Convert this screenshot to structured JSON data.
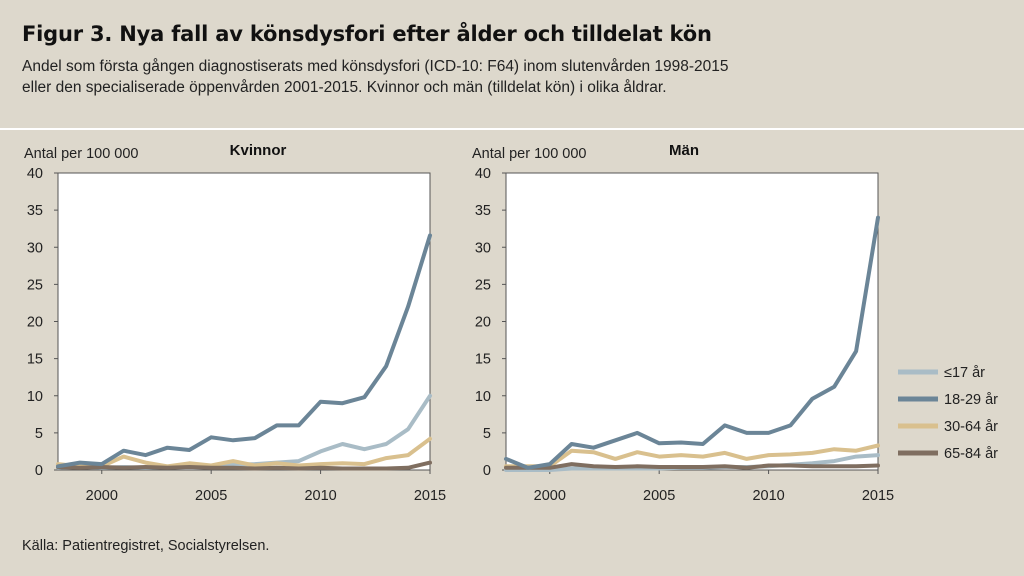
{
  "title": "Figur 3. Nya fall av könsdysfori efter ålder och tilldelat kön",
  "subtitle_line1": "Andel som första gången diagnostiserats med könsdysfori (ICD-10: F64) inom slutenvården 1998-2015",
  "subtitle_line2": "eller den specialiserade öppenvården 2001-2015. Kvinnor och män (tilldelat kön) i olika åldrar.",
  "source": "Källa: Patientregistret, Socialstyrelsen.",
  "colors": {
    "le17": "#a9bcc6",
    "age18_29": "#6b8597",
    "age30_64": "#d9c08e",
    "age65_84": "#7f6e60"
  },
  "legend": [
    {
      "label": "≤17 år",
      "color_key": "le17"
    },
    {
      "label": "18-29 år",
      "color_key": "age18_29"
    },
    {
      "label": "30-64 år",
      "color_key": "age30_64"
    },
    {
      "label": "65-84 år",
      "color_key": "age65_84"
    }
  ],
  "chart_data": [
    {
      "type": "line",
      "title": "Kvinnor",
      "ylabel": "Antal per 100 000",
      "xlabel": "",
      "ylim": [
        0,
        40
      ],
      "yticks": [
        0,
        5,
        10,
        15,
        20,
        25,
        30,
        35,
        40
      ],
      "xlim": [
        1998,
        2015
      ],
      "xticks": [
        2000,
        2005,
        2010,
        2015
      ],
      "grid": false,
      "x": [
        1998,
        1999,
        2000,
        2001,
        2002,
        2003,
        2004,
        2005,
        2006,
        2007,
        2008,
        2009,
        2010,
        2011,
        2012,
        2013,
        2014,
        2015
      ],
      "series": [
        {
          "name": "≤17 år",
          "color_key": "le17",
          "values": [
            0.3,
            0.5,
            0.3,
            0.4,
            0.3,
            0.4,
            0.4,
            0.6,
            0.7,
            0.8,
            1.0,
            1.2,
            2.5,
            3.5,
            2.8,
            3.5,
            5.5,
            10.0
          ]
        },
        {
          "name": "18-29 år",
          "color_key": "age18_29",
          "values": [
            0.5,
            1.0,
            0.8,
            2.6,
            2.0,
            3.0,
            2.7,
            4.4,
            4.0,
            4.3,
            6.0,
            6.0,
            9.2,
            9.0,
            9.8,
            14.0,
            22.0,
            31.6
          ]
        },
        {
          "name": "30-64 år",
          "color_key": "age30_64",
          "values": [
            0.8,
            0.5,
            0.5,
            1.8,
            1.0,
            0.5,
            0.9,
            0.6,
            1.2,
            0.6,
            0.9,
            0.6,
            0.8,
            0.9,
            0.8,
            1.6,
            2.0,
            4.2
          ]
        },
        {
          "name": "65-84 år",
          "color_key": "age65_84",
          "values": [
            0.4,
            0.3,
            0.4,
            0.3,
            0.4,
            0.3,
            0.4,
            0.3,
            0.3,
            0.2,
            0.3,
            0.2,
            0.3,
            0.2,
            0.2,
            0.2,
            0.3,
            1.0
          ]
        }
      ]
    },
    {
      "type": "line",
      "title": "Män",
      "ylabel": "Antal per 100 000",
      "xlabel": "",
      "ylim": [
        0,
        40
      ],
      "yticks": [
        0,
        5,
        10,
        15,
        20,
        25,
        30,
        35,
        40
      ],
      "xlim": [
        1998,
        2015
      ],
      "xticks": [
        2000,
        2005,
        2010,
        2015
      ],
      "grid": false,
      "x": [
        1998,
        1999,
        2000,
        2001,
        2002,
        2003,
        2004,
        2005,
        2006,
        2007,
        2008,
        2009,
        2010,
        2011,
        2012,
        2013,
        2014,
        2015
      ],
      "series": [
        {
          "name": "≤17 år",
          "color_key": "le17",
          "values": [
            0.0,
            0.0,
            0.0,
            0.2,
            0.2,
            0.2,
            0.2,
            0.2,
            0.3,
            0.3,
            0.4,
            0.4,
            0.5,
            0.7,
            0.9,
            1.2,
            1.8,
            2.0
          ]
        },
        {
          "name": "18-29 år",
          "color_key": "age18_29",
          "values": [
            1.5,
            0.3,
            0.8,
            3.5,
            3.0,
            4.0,
            5.0,
            3.6,
            3.7,
            3.5,
            6.0,
            5.0,
            5.0,
            6.0,
            9.6,
            11.2,
            16.0,
            34.0
          ]
        },
        {
          "name": "30-64 år",
          "color_key": "age30_64",
          "values": [
            0.5,
            0.5,
            0.5,
            2.6,
            2.4,
            1.5,
            2.4,
            1.8,
            2.0,
            1.8,
            2.3,
            1.5,
            2.0,
            2.1,
            2.3,
            2.8,
            2.6,
            3.3
          ]
        },
        {
          "name": "65-84 år",
          "color_key": "age65_84",
          "values": [
            0.3,
            0.3,
            0.3,
            0.8,
            0.5,
            0.4,
            0.5,
            0.4,
            0.4,
            0.4,
            0.5,
            0.3,
            0.6,
            0.6,
            0.5,
            0.5,
            0.5,
            0.6
          ]
        }
      ]
    }
  ]
}
